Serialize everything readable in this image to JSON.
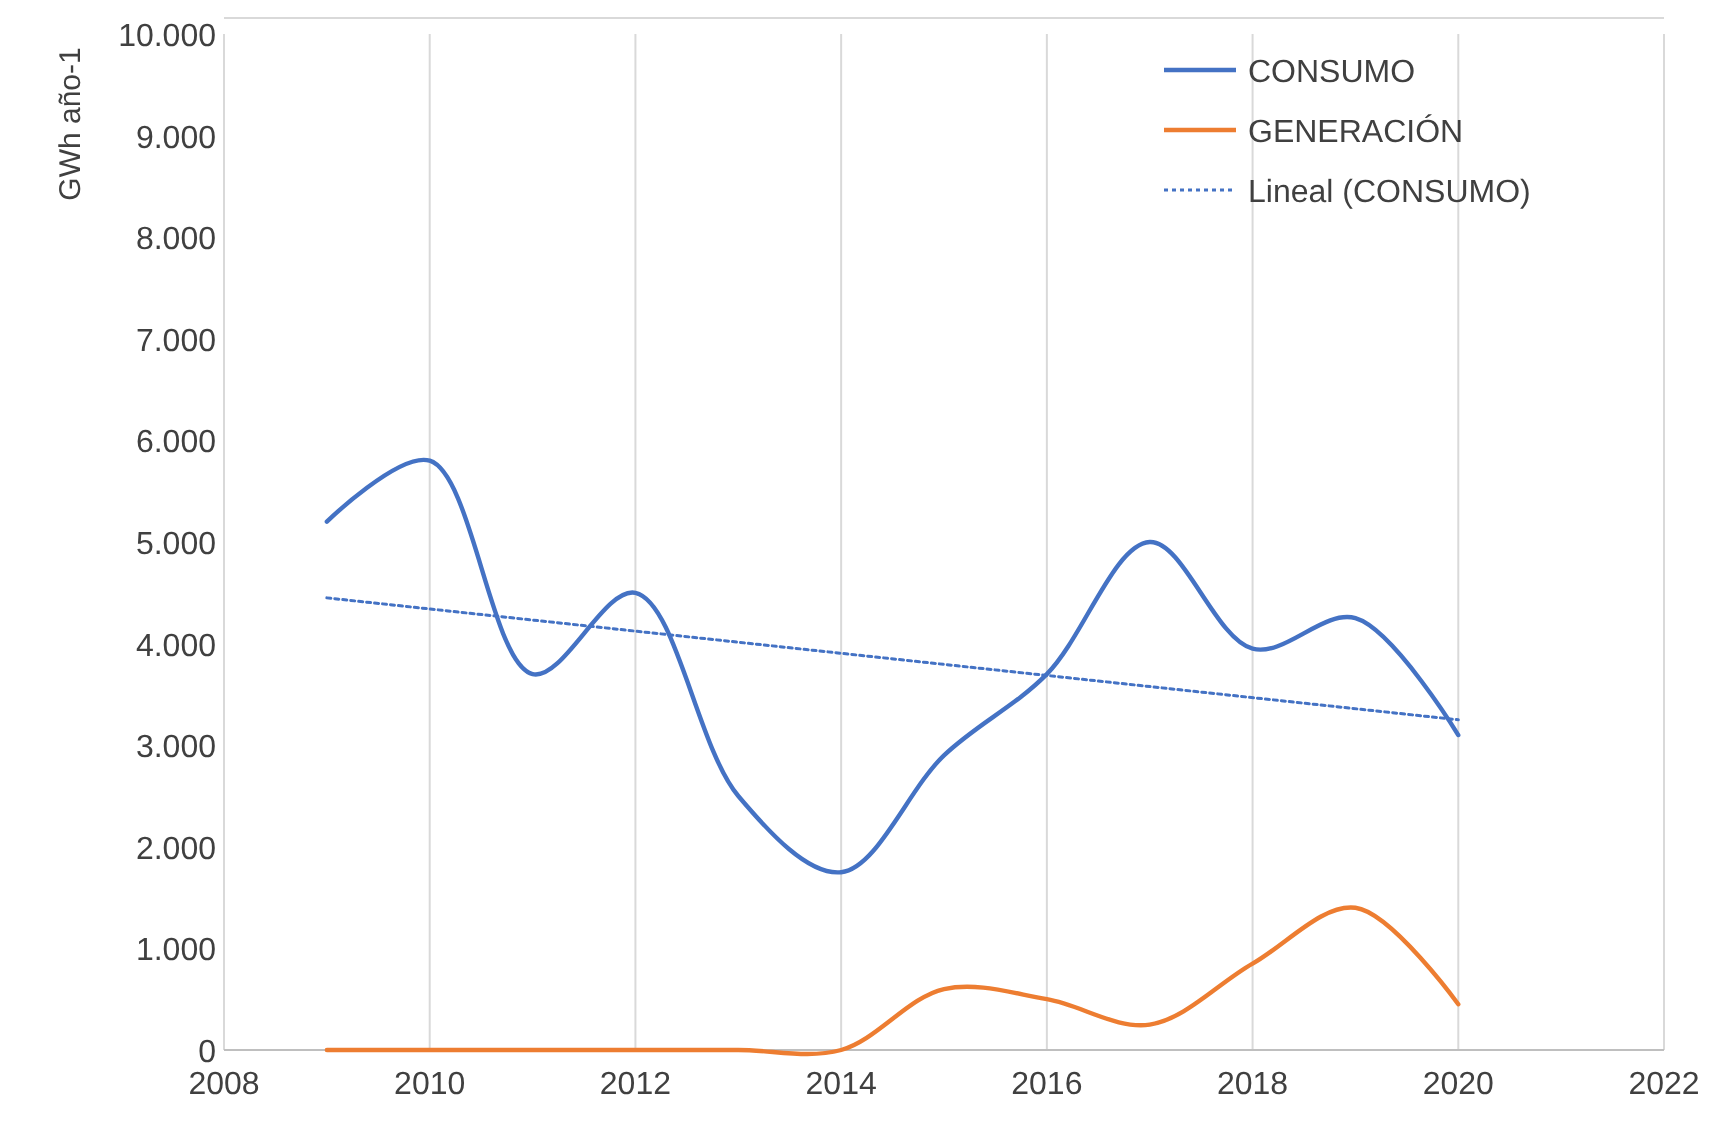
{
  "chart_data": {
    "type": "line",
    "ylabel": "GWh año-1",
    "xlim": [
      2008,
      2022
    ],
    "xticks": [
      2008,
      2010,
      2012,
      2014,
      2016,
      2018,
      2020,
      2022
    ],
    "ylim": [
      0,
      10000
    ],
    "yticks": [
      {
        "value": 0,
        "label": "0"
      },
      {
        "value": 1000,
        "label": "1.000"
      },
      {
        "value": 2000,
        "label": "2.000"
      },
      {
        "value": 3000,
        "label": "3.000"
      },
      {
        "value": 4000,
        "label": "4.000"
      },
      {
        "value": 5000,
        "label": "5.000"
      },
      {
        "value": 6000,
        "label": "6.000"
      },
      {
        "value": 7000,
        "label": "7.000"
      },
      {
        "value": 8000,
        "label": "8.000"
      },
      {
        "value": 9000,
        "label": "9.000"
      },
      {
        "value": 10000,
        "label": "10.000"
      }
    ],
    "x": [
      2009,
      2010,
      2011,
      2012,
      2013,
      2014,
      2015,
      2016,
      2017,
      2018,
      2019,
      2020
    ],
    "grid": "x",
    "legend": "top right",
    "marker": "none",
    "series": [
      {
        "name": "CONSUMO",
        "color": "#4472c4",
        "values": [
          5200,
          5800,
          3700,
          4500,
          2500,
          1750,
          2900,
          3700,
          5000,
          3950,
          4250,
          3100
        ]
      },
      {
        "name": "GENERACIÓN",
        "color": "#ed7d31",
        "values": [
          0,
          0,
          0,
          0,
          0,
          0,
          600,
          500,
          250,
          850,
          1400,
          450
        ]
      },
      {
        "name": "Lineal (CONSUMO)",
        "color": "#4472c4",
        "x": [
          2009,
          2020
        ],
        "values": [
          4450,
          3250
        ],
        "line_style": "dotted"
      }
    ]
  }
}
